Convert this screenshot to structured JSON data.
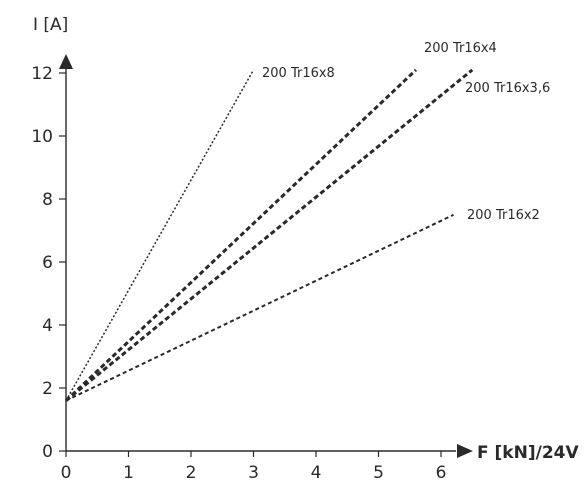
{
  "chart_data": {
    "type": "line",
    "title": "",
    "xlabel": "F [kN]/24V",
    "ylabel": "I [A]",
    "xlim": [
      0,
      6.5
    ],
    "ylim": [
      0,
      12.5
    ],
    "xticks": [
      0,
      1,
      2,
      3,
      4,
      5,
      6
    ],
    "yticks": [
      0,
      2,
      4,
      6,
      8,
      10,
      12
    ],
    "grid": false,
    "legend": "none",
    "series": [
      {
        "name": "200 Tr16x8",
        "x": [
          0,
          3.0
        ],
        "y": [
          1.6,
          12.1
        ],
        "dash": "fine"
      },
      {
        "name": "200 Tr16x4",
        "x": [
          0,
          5.6
        ],
        "y": [
          1.6,
          12.1
        ],
        "dash": "bold"
      },
      {
        "name": "200 Tr16x3,6",
        "x": [
          0,
          6.5
        ],
        "y": [
          1.6,
          12.1
        ],
        "dash": "bold"
      },
      {
        "name": "200 Tr16x2",
        "x": [
          0,
          6.2
        ],
        "y": [
          1.6,
          7.5
        ],
        "dash": "medium"
      }
    ]
  }
}
